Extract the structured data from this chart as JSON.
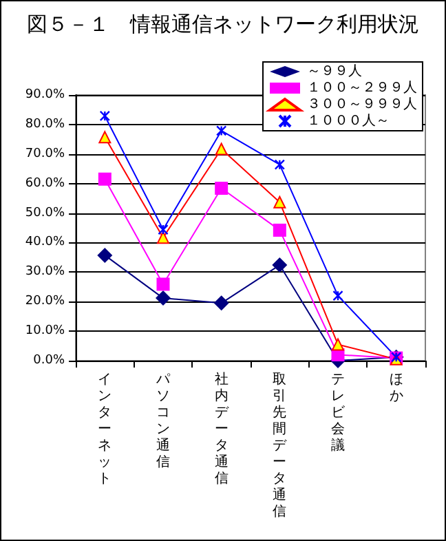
{
  "chart_data": {
    "type": "line",
    "title": "図５－１　情報通信ネットワーク利用状況",
    "categories": [
      "インターネット",
      "パソコン通信",
      "社内データ通信",
      "取引先間データ通信",
      "テレビ会議",
      "ほか"
    ],
    "series": [
      {
        "name": "～９９人",
        "color": "#000080",
        "marker": "diamond",
        "values": [
          35.7,
          21.2,
          19.5,
          32.4,
          0,
          1.2
        ]
      },
      {
        "name": "１００～２９９人",
        "color": "#ff00ff",
        "marker": "square",
        "values": [
          61.5,
          25.9,
          58.4,
          44.2,
          2.0,
          0.9
        ]
      },
      {
        "name": "３００～９９９人",
        "color": "#ff0000",
        "marker": "triangle",
        "values": [
          75.7,
          41.7,
          71.7,
          53.7,
          5.5,
          0.5
        ]
      },
      {
        "name": "１０００人～",
        "color": "#0000ff",
        "marker": "cross",
        "values": [
          82.9,
          44.4,
          77.9,
          66.4,
          22.0,
          1.2
        ]
      }
    ],
    "ylim": [
      0,
      90
    ],
    "yticks": [
      {
        "value": 0,
        "label": "0.0%"
      },
      {
        "value": 10,
        "label": "10.0%"
      },
      {
        "value": 20,
        "label": "20.0%"
      },
      {
        "value": 30,
        "label": "30.0%"
      },
      {
        "value": 40,
        "label": "40.0%"
      },
      {
        "value": 50,
        "label": "50.0%"
      },
      {
        "value": 60,
        "label": "60.0%"
      },
      {
        "value": 70,
        "label": "70.0%"
      },
      {
        "value": 80,
        "label": "80.0%"
      },
      {
        "value": 90,
        "label": "90.0%"
      }
    ],
    "grid": "y",
    "legend": "top right",
    "line_style": "solid"
  }
}
